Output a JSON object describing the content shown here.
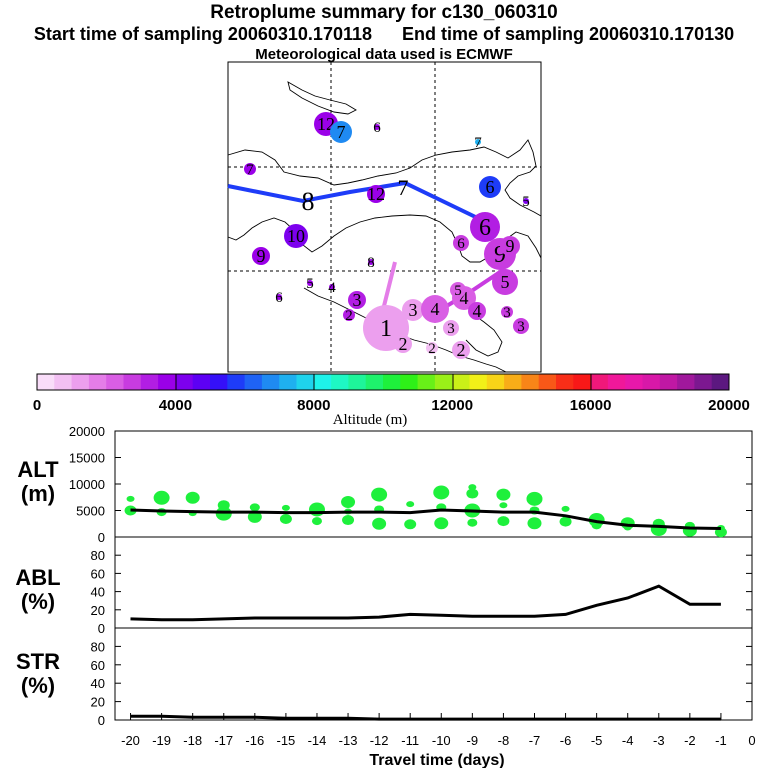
{
  "header": {
    "title": "Retroplume summary for c130_060310",
    "start_label": "Start time of sampling 20060310.170118",
    "end_label": "End time of sampling 20060310.170130",
    "met_label": "Meteorological data used is ECMWF"
  },
  "colorbar": {
    "label": "Altitude (m)",
    "ticks": [
      "0",
      "4000",
      "8000",
      "12000",
      "16000",
      "20000"
    ],
    "tick_values": [
      0,
      4000,
      8000,
      12000,
      16000,
      20000
    ],
    "colors": [
      "#f9ddf9",
      "#f3c0f3",
      "#ec9fee",
      "#e47de8",
      "#d95ee4",
      "#c83ce0",
      "#b21ee3",
      "#9a00e8",
      "#7d00ee",
      "#5d00f4",
      "#3510f8",
      "#1e3cf8",
      "#1f63f5",
      "#1f8af2",
      "#1fb0ef",
      "#1fd3ec",
      "#1ef3ea",
      "#1ef8c4",
      "#1ef59a",
      "#1ef26c",
      "#1ef03c",
      "#2ef018",
      "#68f018",
      "#9af018",
      "#caf018",
      "#f2f018",
      "#f8d418",
      "#f8ad18",
      "#f88518",
      "#f85818",
      "#f82e18",
      "#f81818",
      "#f0187a",
      "#f0189a",
      "#e818aa",
      "#d818a8",
      "#c018a4",
      "#a0189c",
      "#7c1890",
      "#5c1880"
    ]
  },
  "map": {
    "trajectory_blue": [
      {
        "label": "8"
      },
      {
        "label": "7"
      },
      {
        "label": "6"
      }
    ],
    "trajectory_purple": [
      {
        "label": "5"
      },
      {
        "label": "4"
      }
    ],
    "markers": [
      {
        "label": "12",
        "alt": 3800
      },
      {
        "label": "7",
        "alt": 6800
      },
      {
        "label": "6",
        "alt": 3900
      },
      {
        "label": "7",
        "alt": 3600
      },
      {
        "label": "7",
        "alt": 7100
      },
      {
        "label": "6",
        "alt": 5700
      },
      {
        "label": "5",
        "alt": 4000
      },
      {
        "label": "12",
        "alt": 3800
      },
      {
        "label": "10",
        "alt": 4000
      },
      {
        "label": "9",
        "alt": 3900
      },
      {
        "label": "8",
        "alt": 3800
      },
      {
        "label": "6",
        "alt": 3100
      },
      {
        "label": "9",
        "alt": 2900
      },
      {
        "label": "5",
        "alt": 2800
      },
      {
        "label": "6",
        "alt": 3800
      },
      {
        "label": "5",
        "alt": 3800
      },
      {
        "label": "4",
        "alt": 3700
      },
      {
        "label": "3",
        "alt": 3300
      },
      {
        "label": "2",
        "alt": 3200
      },
      {
        "label": "1",
        "alt": 1400
      },
      {
        "label": "2",
        "alt": 1200
      },
      {
        "label": "3",
        "alt": 1400
      },
      {
        "label": "2",
        "alt": 700
      },
      {
        "label": "2",
        "alt": 1300
      },
      {
        "label": "3",
        "alt": 1200
      },
      {
        "label": "4",
        "alt": 2100
      },
      {
        "label": "4",
        "alt": 2200
      },
      {
        "label": "5",
        "alt": 2400
      },
      {
        "label": "3",
        "alt": 2900
      },
      {
        "label": "3",
        "alt": 2600
      },
      {
        "label": "4",
        "alt": 2800
      },
      {
        "label": "6",
        "alt": 2700
      },
      {
        "label": "9",
        "alt": 2600
      }
    ]
  },
  "chart_data": [
    {
      "type": "line",
      "name": "ALT",
      "ylabel": "ALT",
      "yunit": "(m)",
      "ylim": [
        0,
        20000
      ],
      "yticks": [
        "0",
        "5000",
        "10000",
        "15000",
        "20000"
      ],
      "ytick_values": [
        0,
        5000,
        10000,
        15000,
        20000
      ],
      "x": [
        -20,
        -19,
        -18,
        -17,
        -16,
        -15,
        -14,
        -13,
        -12,
        -11,
        -10,
        -9,
        -8,
        -7,
        -6,
        -5,
        -4,
        -3,
        -2,
        -1
      ],
      "values": [
        5100,
        4900,
        4800,
        4700,
        4700,
        4600,
        4600,
        4700,
        4700,
        4600,
        5100,
        4900,
        4700,
        4700,
        4000,
        2900,
        2200,
        2000,
        1700,
        1600
      ],
      "points": [
        {
          "x": -20,
          "y": 7200
        },
        {
          "x": -20,
          "y": 5000
        },
        {
          "x": -19,
          "y": 7400
        },
        {
          "x": -19,
          "y": 4700
        },
        {
          "x": -18,
          "y": 7400
        },
        {
          "x": -18,
          "y": 4500
        },
        {
          "x": -17,
          "y": 6000
        },
        {
          "x": -17,
          "y": 4400
        },
        {
          "x": -16,
          "y": 5600
        },
        {
          "x": -16,
          "y": 3800
        },
        {
          "x": -15,
          "y": 5500
        },
        {
          "x": -15,
          "y": 3400
        },
        {
          "x": -14,
          "y": 5200
        },
        {
          "x": -14,
          "y": 3000
        },
        {
          "x": -13,
          "y": 6600
        },
        {
          "x": -13,
          "y": 4800
        },
        {
          "x": -13,
          "y": 3200
        },
        {
          "x": -12,
          "y": 8000
        },
        {
          "x": -12,
          "y": 5200
        },
        {
          "x": -12,
          "y": 2500
        },
        {
          "x": -11,
          "y": 6200
        },
        {
          "x": -11,
          "y": 2400
        },
        {
          "x": -10,
          "y": 8400
        },
        {
          "x": -10,
          "y": 5600
        },
        {
          "x": -10,
          "y": 2600
        },
        {
          "x": -9,
          "y": 9400
        },
        {
          "x": -9,
          "y": 8200
        },
        {
          "x": -9,
          "y": 5000
        },
        {
          "x": -9,
          "y": 2700
        },
        {
          "x": -8,
          "y": 8000
        },
        {
          "x": -8,
          "y": 6000
        },
        {
          "x": -8,
          "y": 3000
        },
        {
          "x": -7,
          "y": 7200
        },
        {
          "x": -7,
          "y": 5000
        },
        {
          "x": -7,
          "y": 2600
        },
        {
          "x": -6,
          "y": 5300
        },
        {
          "x": -6,
          "y": 2900
        },
        {
          "x": -5,
          "y": 3200
        },
        {
          "x": -5,
          "y": 2200
        },
        {
          "x": -4,
          "y": 2600
        },
        {
          "x": -4,
          "y": 1800
        },
        {
          "x": -3,
          "y": 2500
        },
        {
          "x": -3,
          "y": 1500
        },
        {
          "x": -2,
          "y": 2100
        },
        {
          "x": -2,
          "y": 1200
        },
        {
          "x": -1,
          "y": 1700
        },
        {
          "x": -1,
          "y": 900
        }
      ],
      "color": "#1ef03c"
    },
    {
      "type": "line",
      "name": "ABL",
      "ylabel": "ABL",
      "yunit": "(%)",
      "ylim": [
        0,
        100
      ],
      "yticks": [
        "0",
        "20",
        "40",
        "60",
        "80"
      ],
      "ytick_values": [
        0,
        20,
        40,
        60,
        80
      ],
      "x": [
        -20,
        -19,
        -18,
        -17,
        -16,
        -15,
        -14,
        -13,
        -12,
        -11,
        -10,
        -9,
        -8,
        -7,
        -6,
        -5,
        -4,
        -3,
        -2,
        -1
      ],
      "values": [
        10,
        9,
        9,
        10,
        11,
        11,
        11,
        11,
        12,
        15,
        14,
        13,
        13,
        13,
        15,
        25,
        33,
        46,
        26,
        26
      ]
    },
    {
      "type": "line",
      "name": "STR",
      "ylabel": "STR",
      "yunit": "(%)",
      "ylim": [
        0,
        100
      ],
      "yticks": [
        "0",
        "20",
        "40",
        "60",
        "80"
      ],
      "ytick_values": [
        0,
        20,
        40,
        60,
        80
      ],
      "x": [
        -20,
        -19,
        -18,
        -17,
        -16,
        -15,
        -14,
        -13,
        -12,
        -11,
        -10,
        -9,
        -8,
        -7,
        -6,
        -5,
        -4,
        -3,
        -2,
        -1
      ],
      "values": [
        4,
        4,
        3,
        3,
        3,
        2,
        2,
        2,
        1,
        1,
        1,
        1,
        1,
        1,
        1,
        1,
        1,
        1,
        1,
        1
      ]
    }
  ],
  "xaxis": {
    "label": "Travel time (days)",
    "ticks": [
      "-20",
      "-19",
      "-18",
      "-17",
      "-16",
      "-15",
      "-14",
      "-13",
      "-12",
      "-11",
      "-10",
      "-9",
      "-8",
      "-7",
      "-6",
      "-5",
      "-4",
      "-3",
      "-2",
      "-1",
      "0"
    ],
    "tick_values": [
      -20,
      -19,
      -18,
      -17,
      -16,
      -15,
      -14,
      -13,
      -12,
      -11,
      -10,
      -9,
      -8,
      -7,
      -6,
      -5,
      -4,
      -3,
      -2,
      -1,
      0
    ]
  }
}
